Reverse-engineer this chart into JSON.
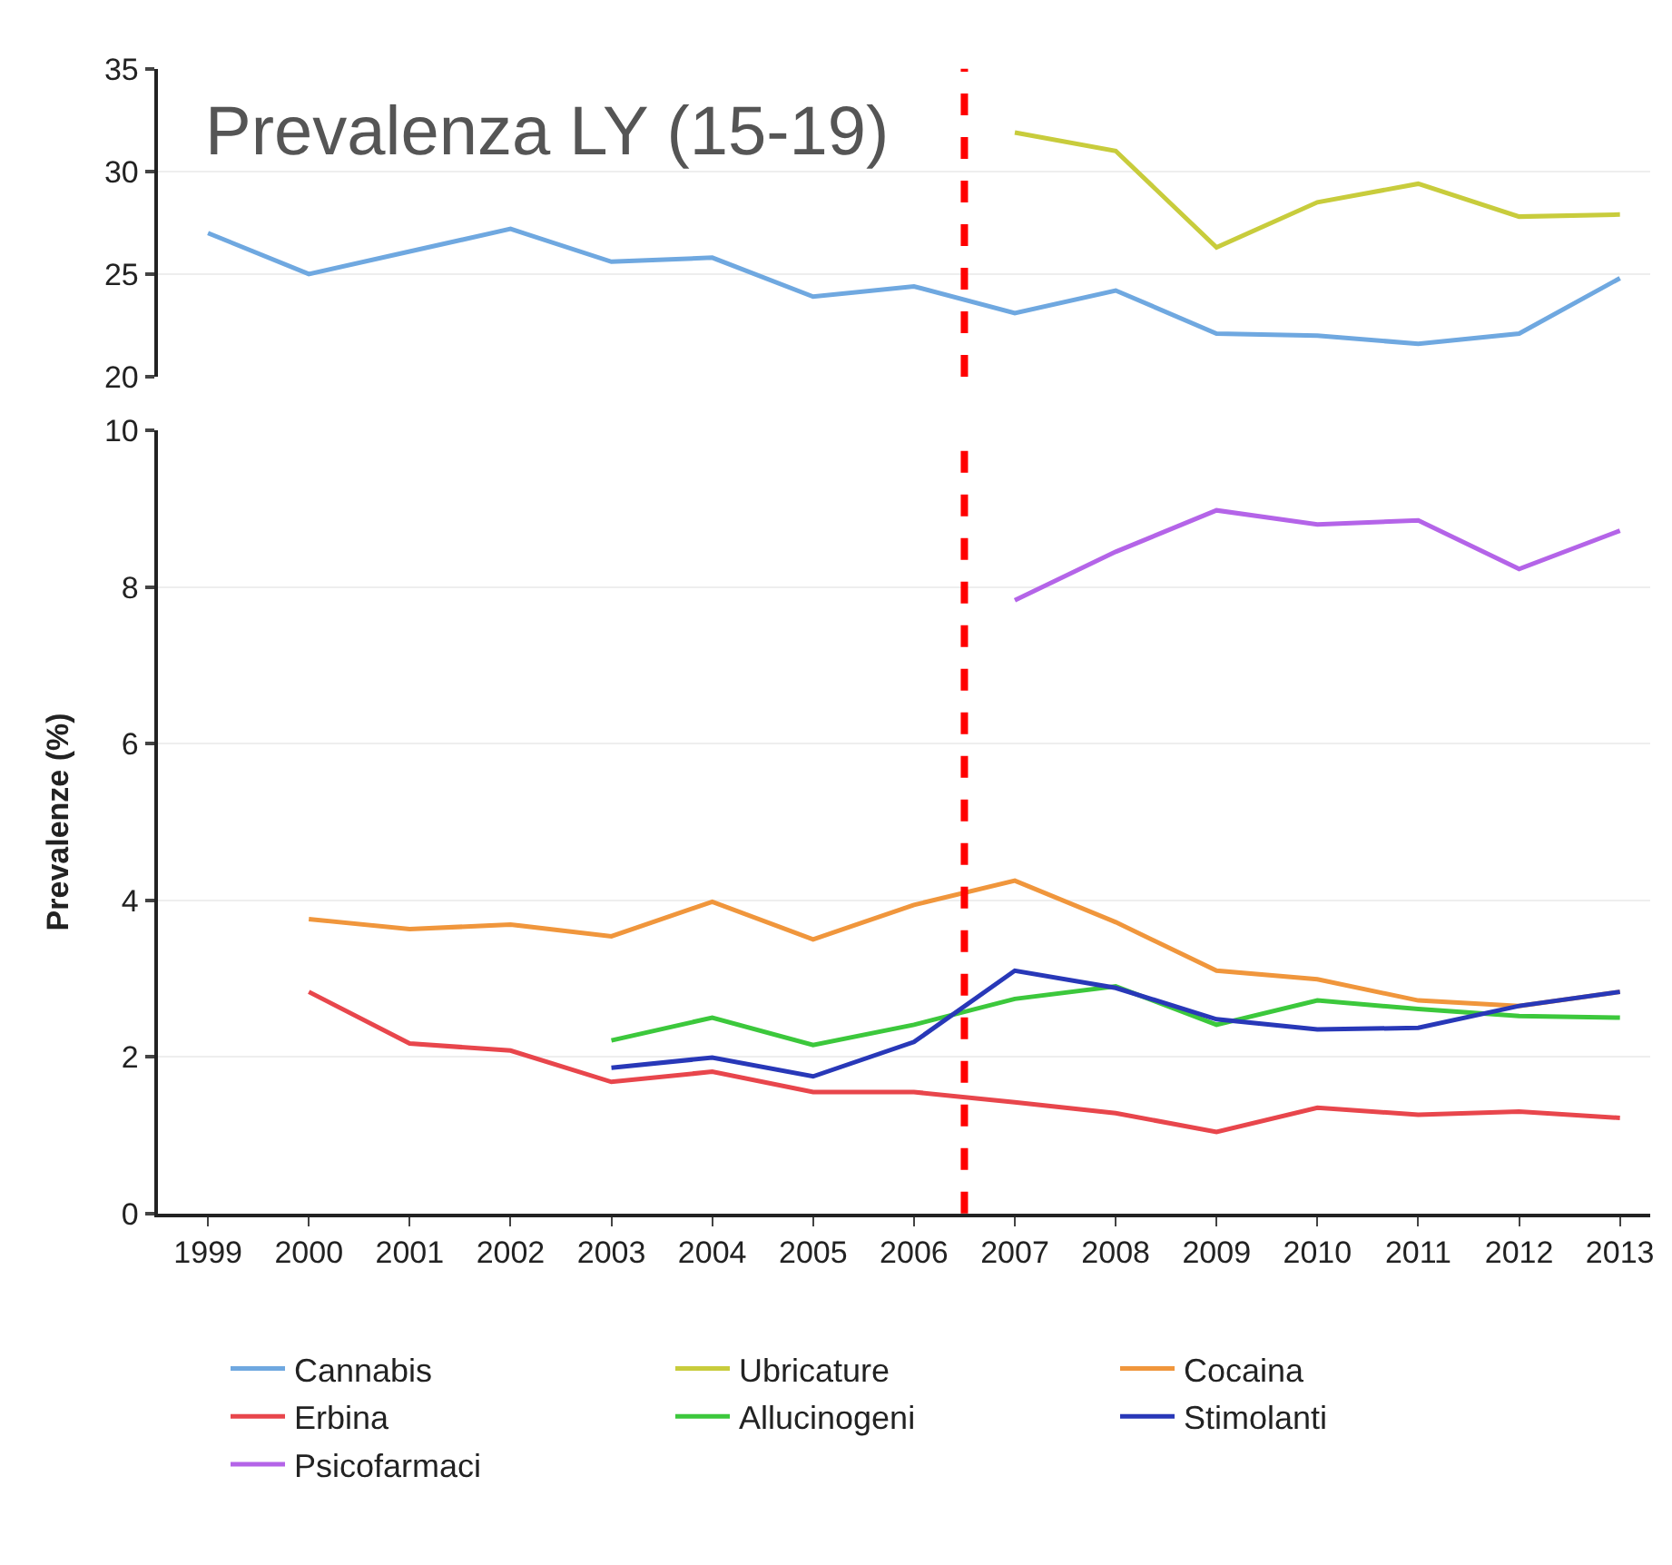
{
  "chart_data": [
    {
      "type": "line",
      "title": "Prevalenza LY (15-19)",
      "x": [
        1999,
        2000,
        2001,
        2002,
        2003,
        2004,
        2005,
        2006,
        2007,
        2008,
        2009,
        2010,
        2011,
        2012,
        2013
      ],
      "xlim": [
        1998.5,
        2013.3
      ],
      "ylim": [
        20,
        35
      ],
      "yticks": [
        20,
        25,
        30,
        35
      ],
      "tick_labels": "y",
      "grid": "y",
      "legend": "bottom",
      "line_style": "solid",
      "ref_lines": [
        {
          "axis": "x",
          "value": 2006.5,
          "color": "#ff0000",
          "line_style": "dashed"
        }
      ],
      "series": [
        {
          "name": "Cannabis",
          "color": "#6fa8e0",
          "values": [
            27.0,
            25.0,
            26.1,
            27.2,
            25.6,
            25.8,
            23.9,
            24.4,
            23.1,
            24.2,
            22.1,
            22.0,
            21.6,
            22.1,
            24.8
          ]
        },
        {
          "name": "Ubricature",
          "color": "#c8cc3c",
          "values": [
            null,
            null,
            null,
            null,
            null,
            null,
            null,
            null,
            31.9,
            31.0,
            26.3,
            28.5,
            29.4,
            27.8,
            27.9
          ]
        }
      ]
    },
    {
      "type": "line",
      "ylabel": "Prevalenze (%)",
      "x": [
        2000,
        2001,
        2002,
        2003,
        2004,
        2005,
        2006,
        2007,
        2008,
        2009,
        2010,
        2011,
        2012,
        2013
      ],
      "xlim": [
        1998.5,
        2013.3
      ],
      "xticks": [
        1999,
        2000,
        2001,
        2002,
        2003,
        2004,
        2005,
        2006,
        2007,
        2008,
        2009,
        2010,
        2011,
        2012,
        2013
      ],
      "ylim": [
        0,
        10
      ],
      "yticks": [
        0,
        2,
        4,
        6,
        8,
        10
      ],
      "grid": "y",
      "legend": "bottom",
      "line_style": "solid",
      "ref_lines": [
        {
          "axis": "x",
          "value": 2006.5,
          "color": "#ff0000",
          "line_style": "dashed"
        }
      ],
      "series": [
        {
          "name": "Cocaina",
          "color": "#f0963c",
          "values": [
            3.76,
            3.63,
            3.69,
            3.54,
            3.98,
            3.5,
            3.94,
            4.25,
            3.72,
            3.1,
            2.99,
            2.72,
            2.65,
            2.83
          ]
        },
        {
          "name": "Erbina",
          "color": "#e8464c",
          "values": [
            2.83,
            2.17,
            2.08,
            1.68,
            1.81,
            1.55,
            1.55,
            1.42,
            1.28,
            1.04,
            1.35,
            1.26,
            1.3,
            1.22
          ]
        },
        {
          "name": "Allucinogeni",
          "color": "#3cc83c",
          "values": [
            null,
            null,
            null,
            2.21,
            2.5,
            2.15,
            2.41,
            2.74,
            2.9,
            2.41,
            2.72,
            2.61,
            2.52,
            2.5
          ]
        },
        {
          "name": "Stimolanti",
          "color": "#2838b8",
          "values": [
            null,
            null,
            null,
            1.86,
            1.99,
            1.75,
            2.19,
            3.1,
            2.88,
            2.48,
            2.35,
            2.37,
            2.65,
            2.83
          ]
        },
        {
          "name": "Psicofarmaci",
          "color": "#b464e8",
          "values": [
            null,
            null,
            null,
            null,
            null,
            null,
            null,
            7.83,
            8.45,
            8.98,
            8.8,
            8.85,
            8.23,
            8.72
          ]
        }
      ]
    }
  ]
}
